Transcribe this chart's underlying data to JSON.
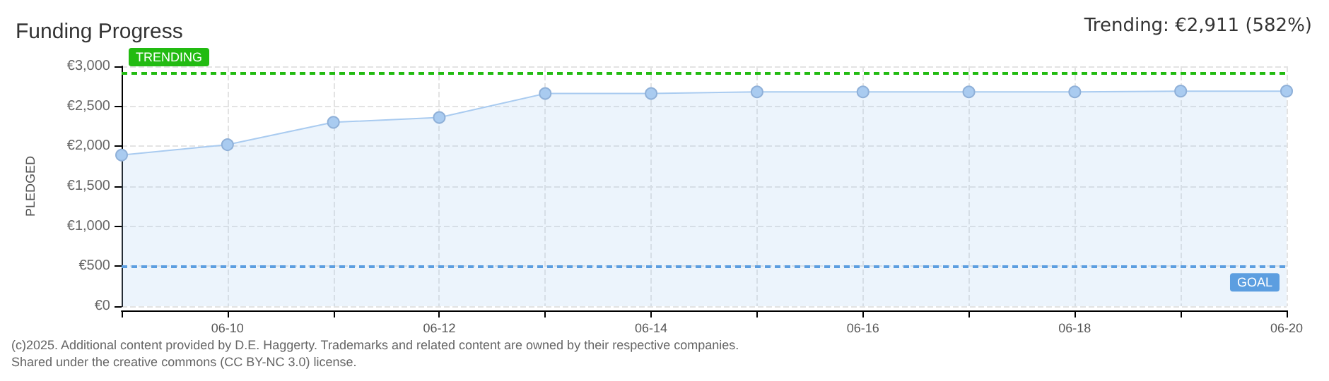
{
  "chart_data": {
    "type": "area",
    "title": "Funding Progress",
    "ylabel": "PLEDGED",
    "categories": [
      null,
      "06-10",
      null,
      "06-12",
      null,
      "06-14",
      null,
      "06-16",
      null,
      "06-18",
      null,
      "06-20"
    ],
    "series": [
      {
        "color": "#a9cbf0",
        "values": [
          1890,
          2020,
          2300,
          2360,
          2660,
          2660,
          2680,
          2680,
          2680,
          2680,
          2690,
          2690
        ]
      }
    ],
    "ylim": [
      0,
      3000
    ],
    "yticks": [
      {
        "value": 0,
        "label": "€0"
      },
      {
        "value": 500,
        "label": "€500"
      },
      {
        "value": 1000,
        "label": "€1,000"
      },
      {
        "value": 1500,
        "label": "€1,500"
      },
      {
        "value": 2000,
        "label": "€2,000"
      },
      {
        "value": 2500,
        "label": "€2,500"
      },
      {
        "value": 3000,
        "label": "€3,000"
      }
    ],
    "ref_lines": [
      {
        "axis": "y",
        "value": 2911,
        "label": "TRENDING",
        "color": "#22bb11",
        "line_style": "dashed"
      },
      {
        "axis": "y",
        "value": 500,
        "label": "GOAL",
        "color": "#5c9ee0",
        "line_style": "dashed"
      }
    ],
    "annotations": [
      "Trending: €2,911 (582%)",
      "(c)2025. Additional content provided by D.E. Haggerty. Trademarks and related content are owned by their respective companies.",
      "Shared under the creative commons (CC BY-NC 3.0) license."
    ],
    "grid": true,
    "marker": "circle"
  }
}
